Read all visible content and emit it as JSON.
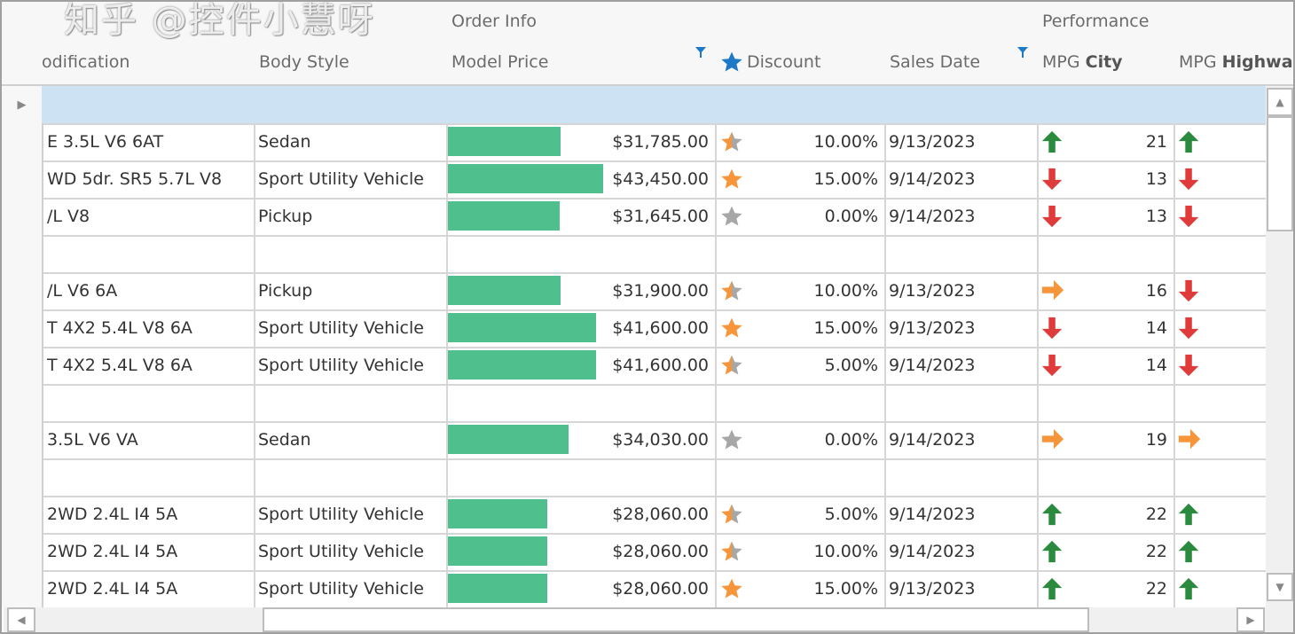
{
  "bands": {
    "order_info": "Order Info",
    "performance": "Performance"
  },
  "columns": {
    "modification": "odification",
    "body_style": "Body Style",
    "model_price": "Model Price",
    "discount": "Discount",
    "sales_date": "Sales Date",
    "mpg_city_prefix": "MPG",
    "mpg_city_bold": "City",
    "mpg_highway_prefix": "MPG",
    "mpg_highway_bold": "Highwa"
  },
  "colors": {
    "bar": "#4fc08d",
    "star_on": "#f7953a",
    "star_off": "#a7a7a7",
    "up": "#2a8a3e",
    "down": "#e03b3b",
    "right": "#f7953a",
    "selected_row": "#cde3f4",
    "filter": "#1e78c8"
  },
  "rows": [
    {
      "empty": true,
      "selected": true
    },
    {
      "modification": "E 3.5L V6 6AT",
      "body_style": "Sedan",
      "price": 31785,
      "price_text": "$31,785.00",
      "star": 0.5,
      "discount": "10.00%",
      "date": "9/13/2023",
      "city_trend": "up",
      "city": "21",
      "hwy_trend": "up"
    },
    {
      "modification": "WD 5dr. SR5 5.7L V8",
      "body_style": "Sport Utility Vehicle",
      "price": 43450,
      "price_text": "$43,450.00",
      "star": 1,
      "discount": "15.00%",
      "date": "9/14/2023",
      "city_trend": "down",
      "city": "13",
      "hwy_trend": "down"
    },
    {
      "modification": "/L V8",
      "body_style": "Pickup",
      "price": 31645,
      "price_text": "$31,645.00",
      "star": 0,
      "discount": "0.00%",
      "date": "9/14/2023",
      "city_trend": "down",
      "city": "13",
      "hwy_trend": "down"
    },
    {
      "empty": true
    },
    {
      "modification": "/L V6 6A",
      "body_style": "Pickup",
      "price": 31900,
      "price_text": "$31,900.00",
      "star": 0.5,
      "discount": "10.00%",
      "date": "9/13/2023",
      "city_trend": "right",
      "city": "16",
      "hwy_trend": "down"
    },
    {
      "modification": "T 4X2 5.4L V8 6A",
      "body_style": "Sport Utility Vehicle",
      "price": 41600,
      "price_text": "$41,600.00",
      "star": 1,
      "discount": "15.00%",
      "date": "9/13/2023",
      "city_trend": "down",
      "city": "14",
      "hwy_trend": "down"
    },
    {
      "modification": "T 4X2 5.4L V8 6A",
      "body_style": "Sport Utility Vehicle",
      "price": 41600,
      "price_text": "$41,600.00",
      "star": 0.5,
      "discount": "5.00%",
      "date": "9/14/2023",
      "city_trend": "down",
      "city": "14",
      "hwy_trend": "down"
    },
    {
      "empty": true
    },
    {
      "modification": "3.5L V6 VA",
      "body_style": "Sedan",
      "price": 34030,
      "price_text": "$34,030.00",
      "star": 0,
      "discount": "0.00%",
      "date": "9/14/2023",
      "city_trend": "right",
      "city": "19",
      "hwy_trend": "right"
    },
    {
      "empty": true
    },
    {
      "modification": "2WD 2.4L I4 5A",
      "body_style": "Sport Utility Vehicle",
      "price": 28060,
      "price_text": "$28,060.00",
      "star": 0.5,
      "discount": "5.00%",
      "date": "9/14/2023",
      "city_trend": "up",
      "city": "22",
      "hwy_trend": "up"
    },
    {
      "modification": "2WD 2.4L I4 5A",
      "body_style": "Sport Utility Vehicle",
      "price": 28060,
      "price_text": "$28,060.00",
      "star": 0.5,
      "discount": "10.00%",
      "date": "9/14/2023",
      "city_trend": "up",
      "city": "22",
      "hwy_trend": "up"
    },
    {
      "modification": "2WD 2.4L I4 5A",
      "body_style": "Sport Utility Vehicle",
      "price": 28060,
      "price_text": "$28,060.00",
      "star": 1,
      "discount": "15.00%",
      "date": "9/13/2023",
      "city_trend": "up",
      "city": "22",
      "hwy_trend": "up"
    }
  ],
  "watermark": "知乎 @控件小慧呀"
}
